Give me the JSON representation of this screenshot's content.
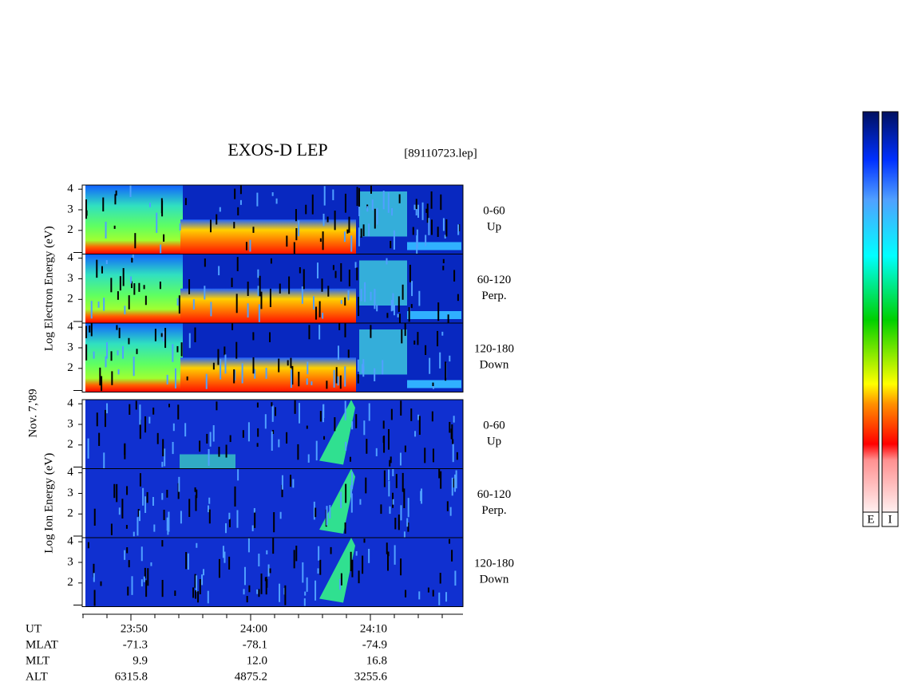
{
  "header": {
    "title": "EXOS-D LEP",
    "file": "[89110723.lep]"
  },
  "date": "Nov. 7,'89",
  "ylim": [
    0.85,
    4.2
  ],
  "yticks": [
    4,
    3,
    2
  ],
  "groups": [
    {
      "label": "Log  Electron  Energy  (eV)",
      "panels": [
        {
          "angle": "0-60",
          "direction": "Up"
        },
        {
          "angle": "60-120",
          "direction": "Perp."
        },
        {
          "angle": "120-180",
          "direction": "Down"
        }
      ]
    },
    {
      "label": "Log  Ion  Energy  (eV)",
      "panels": [
        {
          "angle": "0-60",
          "direction": "Up"
        },
        {
          "angle": "60-120",
          "direction": "Perp."
        },
        {
          "angle": "120-180",
          "direction": "Down"
        }
      ]
    }
  ],
  "orbit": {
    "rows": [
      {
        "name": "UT",
        "values": [
          "23:50",
          "24:00",
          "24:10"
        ]
      },
      {
        "name": "MLAT",
        "values": [
          "-71.3",
          "-78.1",
          "-74.9"
        ]
      },
      {
        "name": "MLT",
        "values": [
          "9.9",
          "12.0",
          "16.8"
        ]
      },
      {
        "name": "ALT",
        "values": [
          "6315.8",
          "4875.2",
          "3255.6"
        ]
      }
    ]
  },
  "colorbars": [
    "E",
    "I"
  ]
}
